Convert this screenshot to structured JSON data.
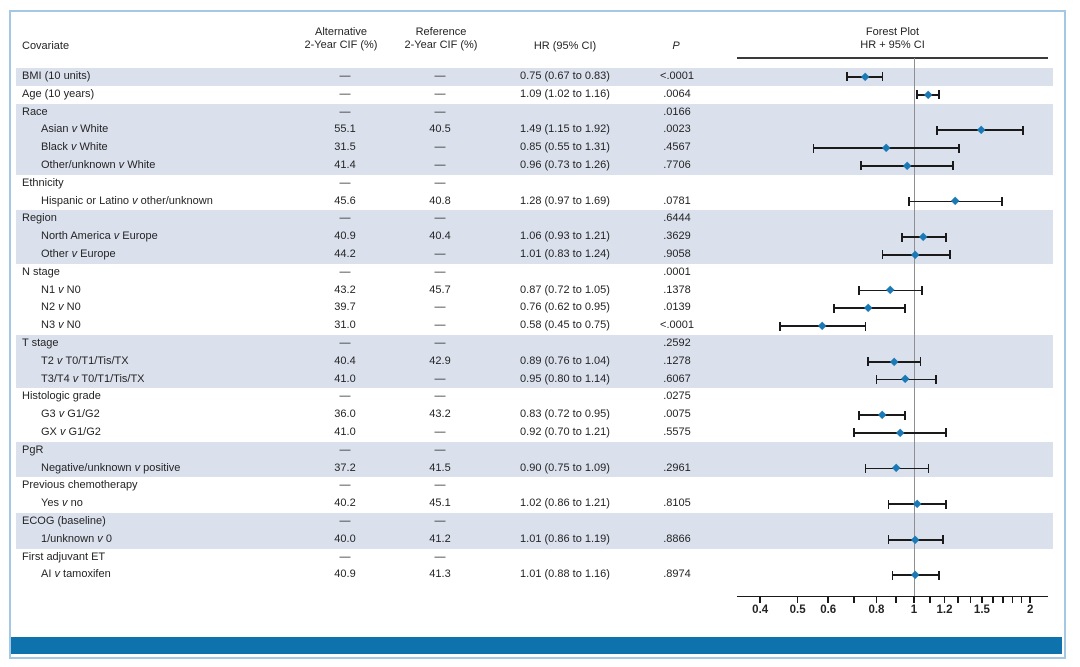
{
  "header": {
    "covariate": "Covariate",
    "alt_line1": "Alternative",
    "alt_line2": "2-Year CIF (%)",
    "ref_line1": "Reference",
    "ref_line2": "2-Year CIF (%)",
    "hr": "HR (95% CI)",
    "p": "P",
    "forest_line1": "Forest Plot",
    "forest_line2": "HR + 95% CI"
  },
  "colors": {
    "band": "#dae1ed",
    "marker": "#1b79b5",
    "footer_bar": "#0e72ad",
    "frame_border": "#a4c8e1",
    "reference_line": "#8f8f8f",
    "error_bar": "#1a1a1a",
    "text": "#242424"
  },
  "rows": [
    {
      "label": "BMI (10 units)",
      "indent": false,
      "shaded": true,
      "alt": "—",
      "ref": "—",
      "hr": "0.75 (0.67 to 0.83)",
      "p": "<.0001",
      "est": 0.75,
      "lo": 0.67,
      "hi": 0.83
    },
    {
      "label": "Age (10 years)",
      "indent": false,
      "shaded": false,
      "alt": "—",
      "ref": "—",
      "hr": "1.09 (1.02 to 1.16)",
      "p": ".0064",
      "est": 1.09,
      "lo": 1.02,
      "hi": 1.16
    },
    {
      "label": "Race",
      "indent": false,
      "shaded": true,
      "alt": "—",
      "ref": "—",
      "hr": "",
      "p": ".0166"
    },
    {
      "label": "Asian v White",
      "indent": true,
      "shaded": true,
      "alt": "55.1",
      "ref": "40.5",
      "hr": "1.49 (1.15 to 1.92)",
      "p": ".0023",
      "est": 1.49,
      "lo": 1.15,
      "hi": 1.92
    },
    {
      "label": "Black v White",
      "indent": true,
      "shaded": true,
      "alt": "31.5",
      "ref": "—",
      "hr": "0.85 (0.55 to 1.31)",
      "p": ".4567",
      "est": 0.85,
      "lo": 0.55,
      "hi": 1.31
    },
    {
      "label": "Other/unknown v White",
      "indent": true,
      "shaded": true,
      "alt": "41.4",
      "ref": "—",
      "hr": "0.96 (0.73 to 1.26)",
      "p": ".7706",
      "est": 0.96,
      "lo": 0.73,
      "hi": 1.26
    },
    {
      "label": "Ethnicity",
      "indent": false,
      "shaded": false,
      "alt": "—",
      "ref": "—",
      "hr": "",
      "p": ""
    },
    {
      "label": "Hispanic or Latino v other/unknown",
      "indent": true,
      "shaded": false,
      "alt": "45.6",
      "ref": "40.8",
      "hr": "1.28 (0.97 to 1.69)",
      "p": ".0781",
      "est": 1.28,
      "lo": 0.97,
      "hi": 1.69
    },
    {
      "label": "Region",
      "indent": false,
      "shaded": true,
      "alt": "—",
      "ref": "—",
      "hr": "",
      "p": ".6444"
    },
    {
      "label": "North America v Europe",
      "indent": true,
      "shaded": true,
      "alt": "40.9",
      "ref": "40.4",
      "hr": "1.06 (0.93 to 1.21)",
      "p": ".3629",
      "est": 1.06,
      "lo": 0.93,
      "hi": 1.21
    },
    {
      "label": "Other v Europe",
      "indent": true,
      "shaded": true,
      "alt": "44.2",
      "ref": "—",
      "hr": "1.01 (0.83 to 1.24)",
      "p": ".9058",
      "est": 1.01,
      "lo": 0.83,
      "hi": 1.24
    },
    {
      "label": "N stage",
      "indent": false,
      "shaded": false,
      "alt": "—",
      "ref": "—",
      "hr": "",
      "p": ".0001"
    },
    {
      "label": "N1 v N0",
      "indent": true,
      "shaded": false,
      "alt": "43.2",
      "ref": "45.7",
      "hr": "0.87 (0.72 to 1.05)",
      "p": ".1378",
      "est": 0.87,
      "lo": 0.72,
      "hi": 1.05
    },
    {
      "label": "N2 v N0",
      "indent": true,
      "shaded": false,
      "alt": "39.7",
      "ref": "—",
      "hr": "0.76 (0.62 to 0.95)",
      "p": ".0139",
      "est": 0.76,
      "lo": 0.62,
      "hi": 0.95
    },
    {
      "label": "N3 v N0",
      "indent": true,
      "shaded": false,
      "alt": "31.0",
      "ref": "—",
      "hr": "0.58 (0.45 to 0.75)",
      "p": "<.0001",
      "est": 0.58,
      "lo": 0.45,
      "hi": 0.75
    },
    {
      "label": "T stage",
      "indent": false,
      "shaded": true,
      "alt": "—",
      "ref": "—",
      "hr": "",
      "p": ".2592"
    },
    {
      "label": "T2 v T0/T1/Tis/TX",
      "indent": true,
      "shaded": true,
      "alt": "40.4",
      "ref": "42.9",
      "hr": "0.89 (0.76 to 1.04)",
      "p": ".1278",
      "est": 0.89,
      "lo": 0.76,
      "hi": 1.04
    },
    {
      "label": "T3/T4 v T0/T1/Tis/TX",
      "indent": true,
      "shaded": true,
      "alt": "41.0",
      "ref": "—",
      "hr": "0.95 (0.80 to 1.14)",
      "p": ".6067",
      "est": 0.95,
      "lo": 0.8,
      "hi": 1.14
    },
    {
      "label": "Histologic grade",
      "indent": false,
      "shaded": false,
      "alt": "—",
      "ref": "—",
      "hr": "",
      "p": ".0275"
    },
    {
      "label": "G3 v G1/G2",
      "indent": true,
      "shaded": false,
      "alt": "36.0",
      "ref": "43.2",
      "hr": "0.83 (0.72 to 0.95)",
      "p": ".0075",
      "est": 0.83,
      "lo": 0.72,
      "hi": 0.95
    },
    {
      "label": "GX v G1/G2",
      "indent": true,
      "shaded": false,
      "alt": "41.0",
      "ref": "—",
      "hr": "0.92 (0.70 to 1.21)",
      "p": ".5575",
      "est": 0.92,
      "lo": 0.7,
      "hi": 1.21
    },
    {
      "label": "PgR",
      "indent": false,
      "shaded": true,
      "alt": "—",
      "ref": "—",
      "hr": "",
      "p": ""
    },
    {
      "label": "Negative/unknown v positive",
      "indent": true,
      "shaded": true,
      "alt": "37.2",
      "ref": "41.5",
      "hr": "0.90 (0.75 to 1.09)",
      "p": ".2961",
      "est": 0.9,
      "lo": 0.75,
      "hi": 1.09
    },
    {
      "label": "Previous chemotherapy",
      "indent": false,
      "shaded": false,
      "alt": "—",
      "ref": "—",
      "hr": "",
      "p": ""
    },
    {
      "label": "Yes v no",
      "indent": true,
      "shaded": false,
      "alt": "40.2",
      "ref": "45.1",
      "hr": "1.02 (0.86 to 1.21)",
      "p": ".8105",
      "est": 1.02,
      "lo": 0.86,
      "hi": 1.21
    },
    {
      "label": "ECOG (baseline)",
      "indent": false,
      "shaded": true,
      "alt": "—",
      "ref": "—",
      "hr": "",
      "p": ""
    },
    {
      "label": "1/unknown v 0",
      "indent": true,
      "shaded": true,
      "alt": "40.0",
      "ref": "41.2",
      "hr": "1.01 (0.86 to 1.19)",
      "p": ".8866",
      "est": 1.01,
      "lo": 0.86,
      "hi": 1.19
    },
    {
      "label": "First adjuvant ET",
      "indent": false,
      "shaded": false,
      "alt": "—",
      "ref": "—",
      "hr": "",
      "p": ""
    },
    {
      "label": "AI v tamoxifen",
      "indent": true,
      "shaded": false,
      "alt": "40.9",
      "ref": "41.3",
      "hr": "1.01 (0.88 to 1.16)",
      "p": ".8974",
      "est": 1.01,
      "lo": 0.88,
      "hi": 1.16
    }
  ],
  "axis": {
    "scale": "log",
    "major_tick_values": [
      0.4,
      0.5,
      0.6,
      0.8,
      1,
      1.2,
      1.5,
      2
    ],
    "major_tick_labels": [
      "0.4",
      "0.5",
      "0.6",
      "0.8",
      "1",
      "1.2",
      "1.5",
      "2"
    ],
    "minor_tick_values": [
      0.7,
      0.9,
      1.1,
      1.3,
      1.4,
      1.6,
      1.7,
      1.8,
      1.9
    ],
    "reference_value": 1
  },
  "chart_data": {
    "type": "scatter",
    "subtype": "forest-plot",
    "title": "Forest Plot HR + 95% CI",
    "xlabel": "HR (95% CI)",
    "x_scale": "log",
    "x_ticks": [
      0.4,
      0.5,
      0.6,
      0.8,
      1,
      1.2,
      1.5,
      2
    ],
    "x_range": [
      0.35,
      2.2
    ],
    "reference_line": 1,
    "grid": false,
    "legend_position": "none",
    "points": [
      {
        "label": "BMI (10 units)",
        "hr": 0.75,
        "ci_low": 0.67,
        "ci_high": 0.83,
        "p": "<.0001"
      },
      {
        "label": "Age (10 years)",
        "hr": 1.09,
        "ci_low": 1.02,
        "ci_high": 1.16,
        "p": ".0064"
      },
      {
        "label": "Asian v White",
        "hr": 1.49,
        "ci_low": 1.15,
        "ci_high": 1.92,
        "p": ".0023"
      },
      {
        "label": "Black v White",
        "hr": 0.85,
        "ci_low": 0.55,
        "ci_high": 1.31,
        "p": ".4567"
      },
      {
        "label": "Other/unknown v White",
        "hr": 0.96,
        "ci_low": 0.73,
        "ci_high": 1.26,
        "p": ".7706"
      },
      {
        "label": "Hispanic or Latino v other/unknown",
        "hr": 1.28,
        "ci_low": 0.97,
        "ci_high": 1.69,
        "p": ".0781"
      },
      {
        "label": "North America v Europe",
        "hr": 1.06,
        "ci_low": 0.93,
        "ci_high": 1.21,
        "p": ".3629"
      },
      {
        "label": "Other v Europe",
        "hr": 1.01,
        "ci_low": 0.83,
        "ci_high": 1.24,
        "p": ".9058"
      },
      {
        "label": "N1 v N0",
        "hr": 0.87,
        "ci_low": 0.72,
        "ci_high": 1.05,
        "p": ".1378"
      },
      {
        "label": "N2 v N0",
        "hr": 0.76,
        "ci_low": 0.62,
        "ci_high": 0.95,
        "p": ".0139"
      },
      {
        "label": "N3 v N0",
        "hr": 0.58,
        "ci_low": 0.45,
        "ci_high": 0.75,
        "p": "<.0001"
      },
      {
        "label": "T2 v T0/T1/Tis/TX",
        "hr": 0.89,
        "ci_low": 0.76,
        "ci_high": 1.04,
        "p": ".1278"
      },
      {
        "label": "T3/T4 v T0/T1/Tis/TX",
        "hr": 0.95,
        "ci_low": 0.8,
        "ci_high": 1.14,
        "p": ".6067"
      },
      {
        "label": "G3 v G1/G2",
        "hr": 0.83,
        "ci_low": 0.72,
        "ci_high": 0.95,
        "p": ".0075"
      },
      {
        "label": "GX v G1/G2",
        "hr": 0.92,
        "ci_low": 0.7,
        "ci_high": 1.21,
        "p": ".5575"
      },
      {
        "label": "Negative/unknown v positive",
        "hr": 0.9,
        "ci_low": 0.75,
        "ci_high": 1.09,
        "p": ".2961"
      },
      {
        "label": "Yes v no",
        "hr": 1.02,
        "ci_low": 0.86,
        "ci_high": 1.21,
        "p": ".8105"
      },
      {
        "label": "1/unknown v 0",
        "hr": 1.01,
        "ci_low": 0.86,
        "ci_high": 1.19,
        "p": ".8866"
      },
      {
        "label": "AI v tamoxifen",
        "hr": 1.01,
        "ci_low": 0.88,
        "ci_high": 1.16,
        "p": ".8974"
      }
    ],
    "group_p_values": {
      "Race": ".0166",
      "N stage": ".0001",
      "T stage": ".2592",
      "Histologic grade": ".0275",
      "Region": ".6444"
    }
  }
}
